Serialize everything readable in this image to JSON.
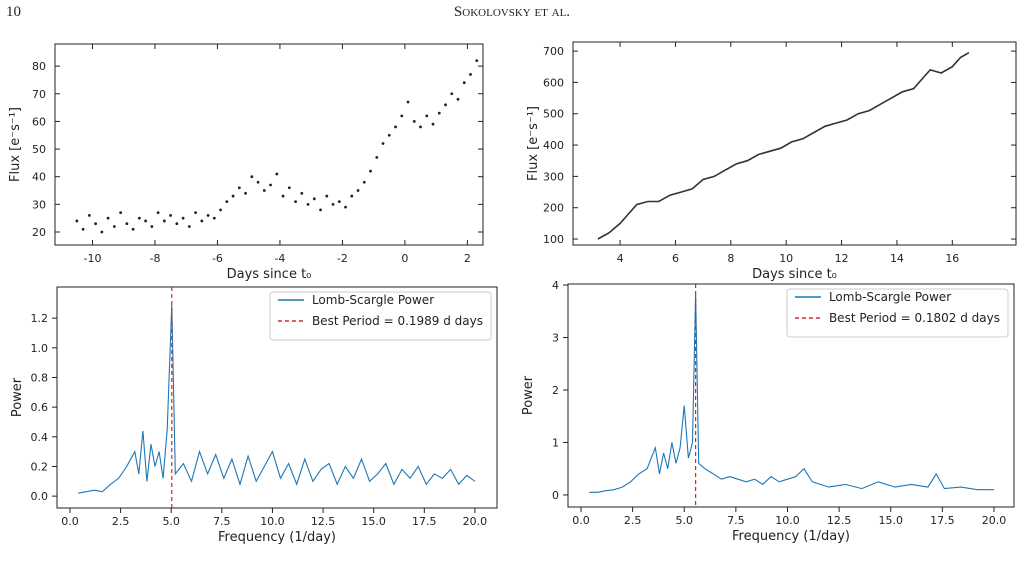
{
  "header": {
    "page": "10",
    "running_title": "Sokolovsky et al."
  },
  "chart_data": [
    {
      "type": "scatter",
      "xlabel": "Days since t₀",
      "ylabel": "Flux [e⁻s⁻¹]",
      "color": "#222222",
      "xlim": [
        -11.2,
        2.5
      ],
      "ylim": [
        15.3,
        88
      ],
      "xticks": [
        -10,
        -8,
        -6,
        -4,
        -2,
        0,
        2
      ],
      "yticks": [
        20,
        30,
        40,
        50,
        60,
        70,
        80
      ],
      "x": [
        -10.5,
        -10.3,
        -10.1,
        -9.9,
        -9.7,
        -9.5,
        -9.3,
        -9.1,
        -8.9,
        -8.7,
        -8.5,
        -8.3,
        -8.1,
        -7.9,
        -7.7,
        -7.5,
        -7.3,
        -7.1,
        -6.9,
        -6.7,
        -6.5,
        -6.3,
        -6.1,
        -5.9,
        -5.7,
        -5.5,
        -5.3,
        -5.1,
        -4.9,
        -4.7,
        -4.5,
        -4.3,
        -4.1,
        -3.9,
        -3.7,
        -3.5,
        -3.3,
        -3.1,
        -2.9,
        -2.7,
        -2.5,
        -2.3,
        -2.1,
        -1.9,
        -1.7,
        -1.5,
        -1.3,
        -1.1,
        -0.9,
        -0.7,
        -0.5,
        -0.3,
        -0.1,
        0.1,
        0.3,
        0.5,
        0.7,
        0.9,
        1.1,
        1.3,
        1.5,
        1.7,
        1.9,
        2.1,
        2.3
      ],
      "values": [
        24,
        21,
        26,
        23,
        20,
        25,
        22,
        27,
        23,
        21,
        25,
        24,
        22,
        27,
        24,
        26,
        23,
        25,
        22,
        27,
        24,
        26,
        25,
        28,
        31,
        33,
        36,
        34,
        40,
        38,
        35,
        37,
        41,
        33,
        36,
        31,
        34,
        30,
        32,
        28,
        33,
        30,
        31,
        29,
        33,
        35,
        38,
        42,
        47,
        52,
        55,
        58,
        62,
        67,
        60,
        58,
        62,
        59,
        63,
        66,
        70,
        68,
        74,
        77,
        82
      ]
    },
    {
      "type": "line",
      "xlabel": "Days since t₀",
      "ylabel": "Flux [e⁻s⁻¹]",
      "color": "#333333",
      "xlim": [
        2.3,
        18.3
      ],
      "ylim": [
        81,
        729
      ],
      "xticks": [
        4,
        6,
        8,
        10,
        12,
        14,
        16
      ],
      "yticks": [
        100,
        200,
        300,
        400,
        500,
        600,
        700
      ],
      "x": [
        3.2,
        3.6,
        4.0,
        4.3,
        4.6,
        5.0,
        5.4,
        5.8,
        6.2,
        6.6,
        7.0,
        7.4,
        7.8,
        8.2,
        8.6,
        9.0,
        9.4,
        9.8,
        10.2,
        10.6,
        11.0,
        11.4,
        11.8,
        12.2,
        12.6,
        13.0,
        13.4,
        13.8,
        14.2,
        14.6,
        15.0,
        15.2,
        15.6,
        16.0,
        16.3,
        16.6
      ],
      "values": [
        100,
        120,
        150,
        180,
        210,
        220,
        220,
        240,
        250,
        260,
        290,
        300,
        320,
        340,
        350,
        370,
        380,
        390,
        410,
        420,
        440,
        460,
        470,
        480,
        500,
        510,
        530,
        550,
        570,
        580,
        620,
        640,
        630,
        650,
        680,
        695
      ]
    },
    {
      "type": "line",
      "xlabel": "Frequency (1/day)",
      "ylabel": "Power",
      "legend": "upper right",
      "xlim": [
        -0.64,
        21.09
      ],
      "ylim": [
        -0.08,
        1.41
      ],
      "xticks": [
        {
          "value": 0,
          "label": "0.0"
        },
        {
          "value": 2.5,
          "label": "2.5"
        },
        {
          "value": 5,
          "label": "5.0"
        },
        {
          "value": 7.5,
          "label": "7.5"
        },
        {
          "value": 10,
          "label": "10.0"
        },
        {
          "value": 12.5,
          "label": "12.5"
        },
        {
          "value": 15,
          "label": "15.0"
        },
        {
          "value": 17.5,
          "label": "17.5"
        },
        {
          "value": 20,
          "label": "20.0"
        }
      ],
      "yticks": [
        {
          "value": 0,
          "label": "0.0"
        },
        {
          "value": 0.2,
          "label": "0.2"
        },
        {
          "value": 0.4,
          "label": "0.4"
        },
        {
          "value": 0.6,
          "label": "0.6"
        },
        {
          "value": 0.8,
          "label": "0.8"
        },
        {
          "value": 1,
          "label": "1.0"
        },
        {
          "value": 1.2,
          "label": "1.2"
        }
      ],
      "x": [
        0.4,
        0.8,
        1.2,
        1.6,
        2.0,
        2.4,
        2.8,
        3.2,
        3.4,
        3.6,
        3.8,
        4.0,
        4.2,
        4.4,
        4.6,
        4.8,
        5.03,
        5.2,
        5.6,
        6.0,
        6.4,
        6.8,
        7.2,
        7.6,
        8.0,
        8.4,
        8.8,
        9.2,
        9.6,
        10.0,
        10.4,
        10.8,
        11.2,
        11.6,
        12.0,
        12.4,
        12.8,
        13.2,
        13.6,
        14.0,
        14.4,
        14.8,
        15.2,
        15.6,
        16.0,
        16.4,
        16.8,
        17.2,
        17.6,
        18.0,
        18.4,
        18.8,
        19.2,
        19.6,
        20.0
      ],
      "series": [
        {
          "name": "Lomb-Scargle Power",
          "color": "#1f77b4",
          "values": [
            0.02,
            0.03,
            0.04,
            0.03,
            0.08,
            0.12,
            0.2,
            0.3,
            0.15,
            0.44,
            0.1,
            0.35,
            0.2,
            0.3,
            0.12,
            0.45,
            1.29,
            0.15,
            0.22,
            0.1,
            0.3,
            0.15,
            0.28,
            0.12,
            0.25,
            0.08,
            0.27,
            0.1,
            0.2,
            0.3,
            0.12,
            0.22,
            0.08,
            0.25,
            0.1,
            0.18,
            0.22,
            0.08,
            0.2,
            0.12,
            0.25,
            0.1,
            0.15,
            0.22,
            0.08,
            0.18,
            0.12,
            0.2,
            0.08,
            0.15,
            0.12,
            0.18,
            0.08,
            0.14,
            0.1
          ]
        }
      ],
      "vlines": [
        {
          "name": "Best Period = 0.1989 d days",
          "color": "#d62728",
          "x": 5.03
        }
      ]
    },
    {
      "type": "line",
      "xlabel": "Frequency (1/day)",
      "ylabel": "Power",
      "legend": "upper right",
      "xlim": [
        -0.63,
        20.97
      ],
      "ylim": [
        -0.23,
        4.02
      ],
      "xticks": [
        {
          "value": 0,
          "label": "0.0"
        },
        {
          "value": 2.5,
          "label": "2.5"
        },
        {
          "value": 5,
          "label": "5.0"
        },
        {
          "value": 7.5,
          "label": "7.5"
        },
        {
          "value": 10,
          "label": "10.0"
        },
        {
          "value": 12.5,
          "label": "12.5"
        },
        {
          "value": 15,
          "label": "15.0"
        },
        {
          "value": 17.5,
          "label": "17.5"
        },
        {
          "value": 20,
          "label": "20.0"
        }
      ],
      "yticks": [
        0,
        1,
        2,
        3,
        4
      ],
      "x": [
        0.4,
        0.8,
        1.2,
        1.6,
        2.0,
        2.4,
        2.8,
        3.2,
        3.6,
        3.8,
        4.0,
        4.2,
        4.4,
        4.6,
        4.8,
        5.0,
        5.2,
        5.4,
        5.55,
        5.7,
        6.0,
        6.4,
        6.8,
        7.2,
        7.6,
        8.0,
        8.4,
        8.8,
        9.2,
        9.6,
        10.0,
        10.4,
        10.8,
        11.2,
        11.6,
        12.0,
        12.8,
        13.6,
        14.4,
        15.2,
        16.0,
        16.8,
        17.2,
        17.6,
        18.4,
        19.2,
        20.0
      ],
      "series": [
        {
          "name": "Lomb-Scargle Power",
          "color": "#1f77b4",
          "values": [
            0.05,
            0.05,
            0.08,
            0.1,
            0.15,
            0.25,
            0.4,
            0.5,
            0.9,
            0.4,
            0.8,
            0.5,
            1.0,
            0.6,
            0.9,
            1.7,
            0.7,
            1.0,
            3.85,
            0.6,
            0.5,
            0.4,
            0.3,
            0.35,
            0.3,
            0.25,
            0.3,
            0.2,
            0.35,
            0.25,
            0.3,
            0.35,
            0.5,
            0.25,
            0.2,
            0.15,
            0.2,
            0.12,
            0.25,
            0.15,
            0.2,
            0.15,
            0.4,
            0.12,
            0.15,
            0.1,
            0.1
          ]
        }
      ],
      "vlines": [
        {
          "name": "Best Period = 0.1802 d days",
          "color": "#d62728",
          "x": 5.55
        }
      ]
    }
  ]
}
